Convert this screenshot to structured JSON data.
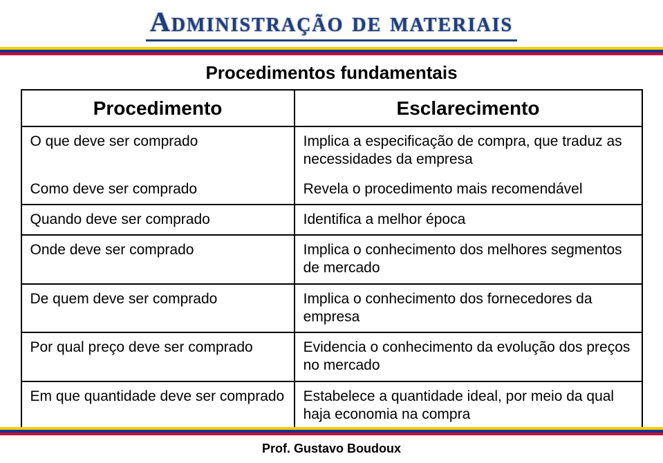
{
  "title": "Administração de materiais",
  "subtitle": "Procedimentos fundamentais",
  "bands": {
    "colors": [
      "#ffcc00",
      "#0033a0",
      "#c8102e"
    ]
  },
  "table": {
    "headers": {
      "left": "Procedimento",
      "right": "Esclarecimento"
    },
    "rows": [
      {
        "proc": "O que deve ser comprado",
        "esc": "Implica a especificação de compra, que traduz as necessidades da empresa"
      },
      {
        "proc": "Como deve ser comprado",
        "esc": "Revela o procedimento mais recomendável"
      },
      {
        "proc": "Quando deve ser comprado",
        "esc": "Identifica a melhor época"
      },
      {
        "proc": "Onde deve ser comprado",
        "esc": "Implica o conhecimento dos melhores segmentos de mercado"
      },
      {
        "proc": "De quem deve ser comprado",
        "esc": "Implica o conhecimento dos fornecedores da empresa"
      },
      {
        "proc": "Por qual preço deve ser comprado",
        "esc": "Evidencia o conhecimento da evolução dos preços no mercado"
      },
      {
        "proc": "Em que quantidade deve ser comprado",
        "esc": "Estabelece a quantidade ideal, por meio da qual haja economia na compra"
      }
    ]
  },
  "footer": "Prof. Gustavo Boudoux"
}
